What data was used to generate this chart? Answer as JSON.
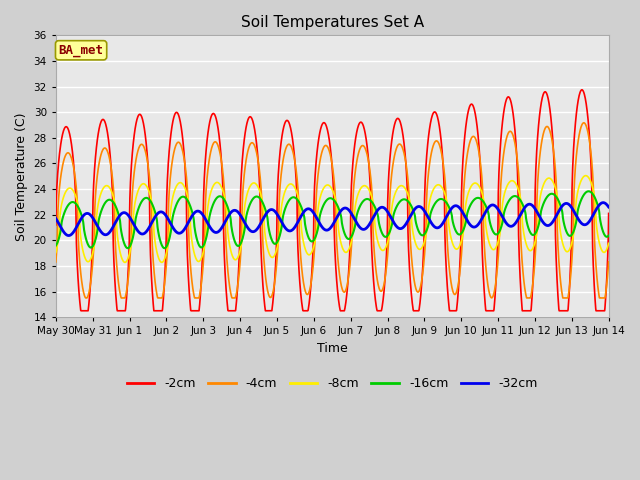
{
  "title": "Soil Temperatures Set A",
  "xlabel": "Time",
  "ylabel": "Soil Temperature (C)",
  "ylim": [
    14,
    36
  ],
  "yticks": [
    14,
    16,
    18,
    20,
    22,
    24,
    26,
    28,
    30,
    32,
    34,
    36
  ],
  "fig_facecolor": "#d0d0d0",
  "ax_facecolor": "#e8e8e8",
  "annotation_text": "BA_met",
  "annotation_bg": "#ffff99",
  "annotation_border": "#999900",
  "annotation_text_color": "#8B0000",
  "series_colors": [
    "#ff0000",
    "#ff8800",
    "#ffee00",
    "#00cc00",
    "#0000ee"
  ],
  "series_labels": [
    "-2cm",
    "-4cm",
    "-8cm",
    "-16cm",
    "-32cm"
  ],
  "series_lw": [
    1.2,
    1.2,
    1.2,
    1.5,
    2.0
  ],
  "num_days": 15,
  "points_per_day": 120
}
